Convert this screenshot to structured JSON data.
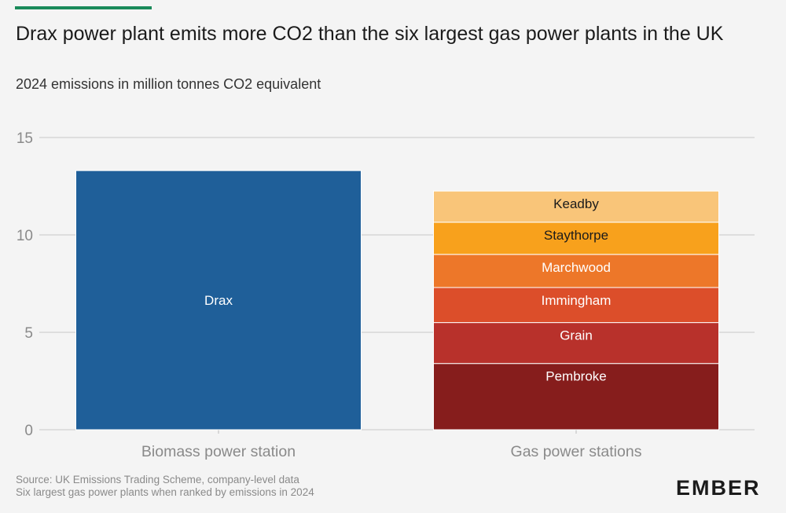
{
  "header": {
    "title": "Drax power plant emits more CO2 than the six largest gas power plants in the UK",
    "subtitle": "2024 emissions in million tonnes CO2 equivalent"
  },
  "footer": {
    "source_line1": "Source: UK Emissions Trading Scheme, company-level data",
    "source_line2": "Six largest gas power plants when ranked by emissions in 2024",
    "logo": "EMBER"
  },
  "colors": {
    "accent": "#1a8a5a",
    "drax": "#1f5f99",
    "grid": "#c8c8c8"
  },
  "chart_data": {
    "type": "bar",
    "stacked": true,
    "categories": [
      "Biomass power station",
      "Gas power stations"
    ],
    "ylim": [
      0,
      15
    ],
    "yticks": [
      0,
      5,
      10,
      15
    ],
    "grid": true,
    "series": [
      {
        "name": "Drax",
        "category": "Biomass power station",
        "value": 13.3,
        "color": "#1f5f99",
        "label_color": "#ffffff"
      },
      {
        "name": "Pembroke",
        "category": "Gas power stations",
        "value": 3.4,
        "color": "#861d1c",
        "label_color": "#ffffff"
      },
      {
        "name": "Grain",
        "category": "Gas power stations",
        "value": 2.1,
        "color": "#b8312b",
        "label_color": "#ffffff"
      },
      {
        "name": "Immingham",
        "category": "Gas power stations",
        "value": 1.8,
        "color": "#dc4e2a",
        "label_color": "#ffffff"
      },
      {
        "name": "Marchwood",
        "category": "Gas power stations",
        "value": 1.7,
        "color": "#ed7729",
        "label_color": "#ffffff"
      },
      {
        "name": "Staythorpe",
        "category": "Gas power stations",
        "value": 1.65,
        "color": "#f8a11c",
        "label_color": "#1b1b1b"
      },
      {
        "name": "Keadby",
        "category": "Gas power stations",
        "value": 1.6,
        "color": "#f9c579",
        "label_color": "#1b1b1b"
      }
    ]
  }
}
